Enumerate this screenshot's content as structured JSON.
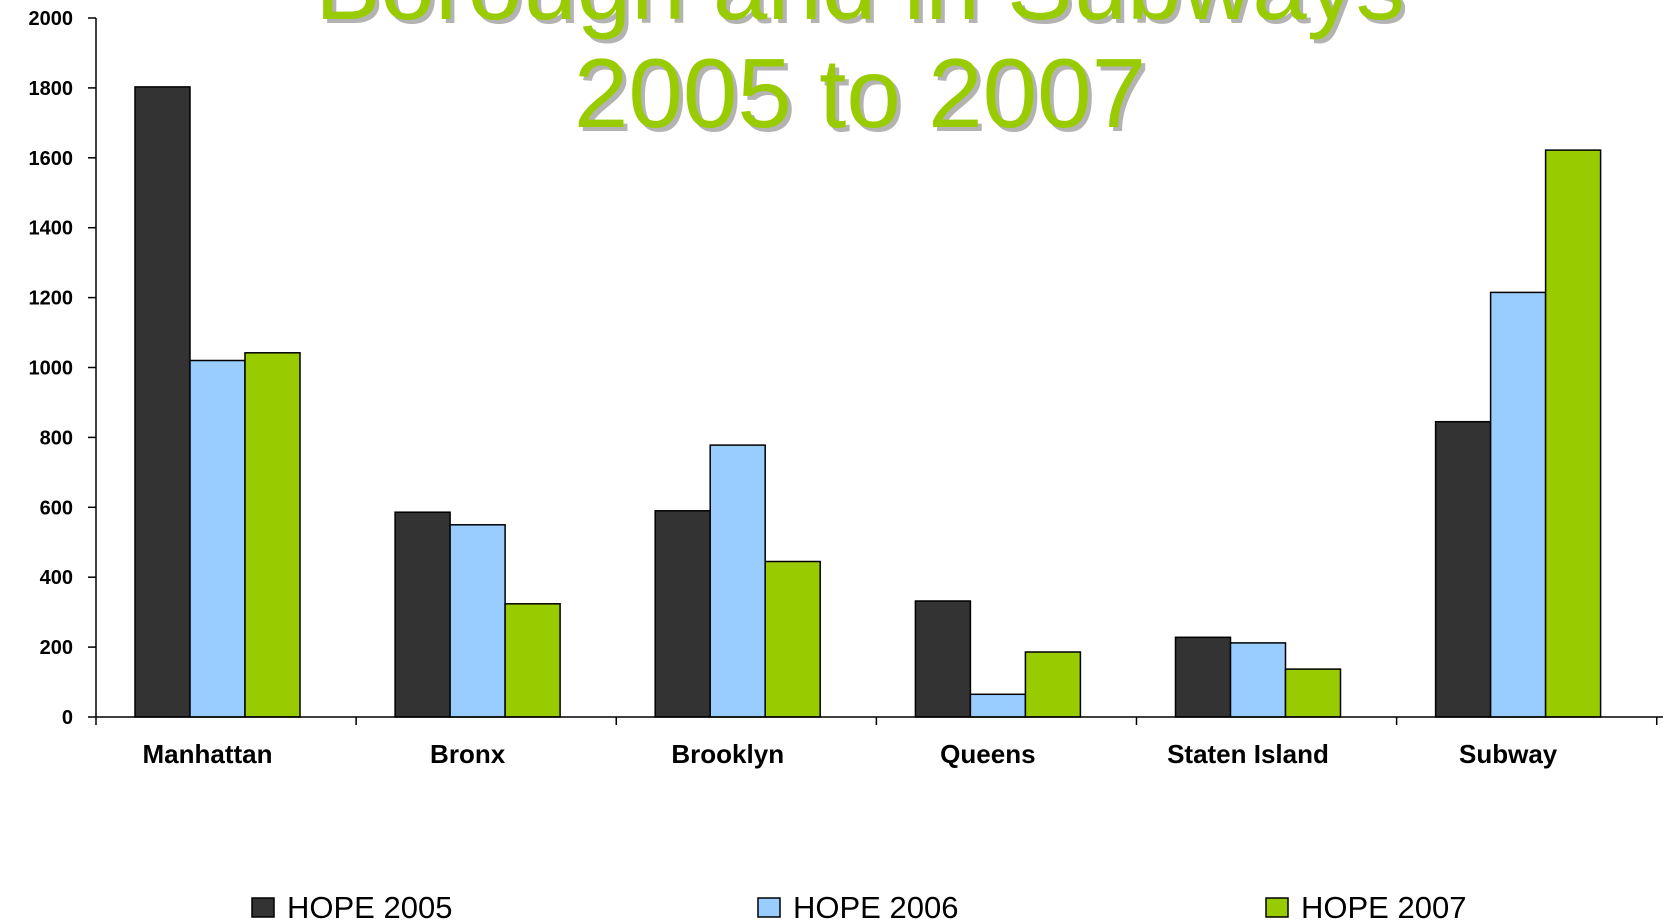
{
  "chart_data": {
    "type": "bar",
    "title_lines": [
      "Borough and in Subways",
      "2005 to 2007"
    ],
    "title_color": "#99cc00",
    "categories": [
      "Manhattan",
      "Bronx",
      "Brooklyn",
      "Queens",
      "Staten Island",
      "Subway"
    ],
    "series": [
      {
        "name": "HOPE 2005",
        "color": "#333333",
        "values": [
          1803,
          586,
          590,
          332,
          228,
          845
        ]
      },
      {
        "name": "HOPE 2006",
        "color": "#99ccff",
        "values": [
          1020,
          550,
          778,
          65,
          212,
          1215
        ]
      },
      {
        "name": "HOPE 2007",
        "color": "#99cc00",
        "values": [
          1042,
          324,
          445,
          186,
          137,
          1622
        ]
      }
    ],
    "ylim": [
      0,
      2000
    ],
    "yticks": [
      "0",
      "200",
      "400",
      "600",
      "800",
      "1000",
      "1200",
      "1400",
      "1600",
      "1800",
      "2000"
    ],
    "grid": false,
    "legend_position": "bottom"
  }
}
